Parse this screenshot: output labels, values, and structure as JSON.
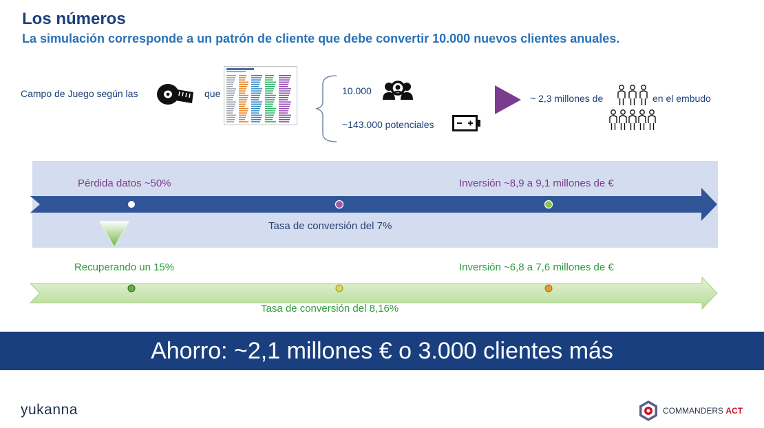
{
  "header": {
    "title": "Los números",
    "subtitle": "La simulación corresponde a un patrón de cliente que debe convertir 10.000 nuevos clientes anuales."
  },
  "top_row": {
    "campo_label": "Campo de Juego según las",
    "que_label": "que",
    "clients_value": "10.000",
    "potenciales_label": "~143.000 potenciales",
    "embudo_prefix": "~ 2,3 millones de",
    "embudo_suffix": "en el embudo"
  },
  "blue_band": {
    "perdida": "Pérdida datos ~50%",
    "inversion": "Inversión ~8,9 a 9,1 millones de €",
    "tasa": "Tasa de conversión del 7%"
  },
  "green_band": {
    "recuperando": "Recuperando un 15%",
    "inversion": "Inversión ~6,8 a 7,6 millones de €",
    "tasa": "Tasa de conversión del 8,16%"
  },
  "banner": {
    "text": "Ahorro: ~2,1 millones € o 3.000 clientes más"
  },
  "footer": {
    "logo_left": "yukanna",
    "logo_right_a": "COMMANDERS",
    "logo_right_b": "ACT"
  },
  "colors": {
    "title": "#1b3f7a",
    "subtitle": "#2b72b5",
    "blue_arrow": "#2f5597",
    "green_arrow": "#c5e3ac",
    "banner": "#1a3f7e",
    "play_triangle": "#7a3c8e"
  }
}
